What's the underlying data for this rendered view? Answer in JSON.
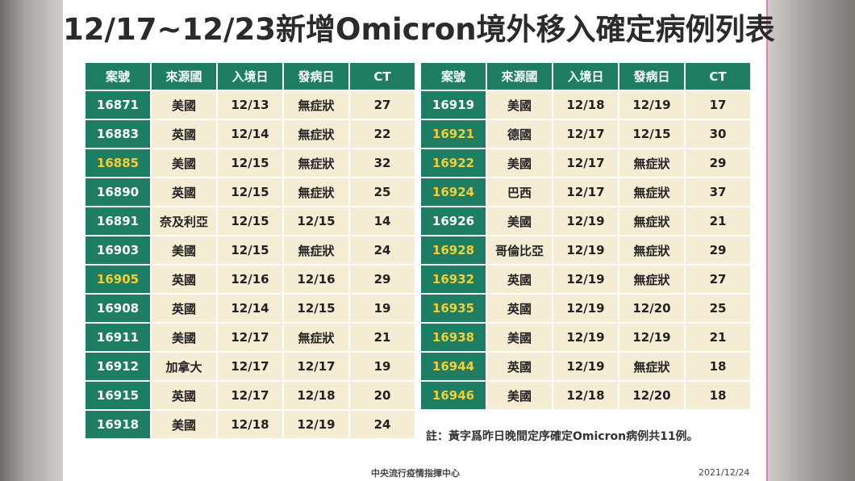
{
  "title": "12/17~12/23新增Omicron境外移入確定病例列表",
  "headers": [
    "案號",
    "來源國",
    "入境日",
    "發病日",
    "CT"
  ],
  "left_rows": [
    {
      "case": "16871",
      "hl": false,
      "country": "美國",
      "entry": "12/13",
      "onset": "無症狀",
      "ct": "27"
    },
    {
      "case": "16883",
      "hl": false,
      "country": "英國",
      "entry": "12/14",
      "onset": "無症狀",
      "ct": "22"
    },
    {
      "case": "16885",
      "hl": true,
      "country": "美國",
      "entry": "12/15",
      "onset": "無症狀",
      "ct": "32"
    },
    {
      "case": "16890",
      "hl": false,
      "country": "英國",
      "entry": "12/15",
      "onset": "無症狀",
      "ct": "25"
    },
    {
      "case": "16891",
      "hl": false,
      "country": "奈及利亞",
      "entry": "12/15",
      "onset": "12/15",
      "ct": "14"
    },
    {
      "case": "16903",
      "hl": false,
      "country": "美國",
      "entry": "12/15",
      "onset": "無症狀",
      "ct": "24"
    },
    {
      "case": "16905",
      "hl": true,
      "country": "英國",
      "entry": "12/16",
      "onset": "12/16",
      "ct": "29"
    },
    {
      "case": "16908",
      "hl": false,
      "country": "英國",
      "entry": "12/14",
      "onset": "12/15",
      "ct": "19"
    },
    {
      "case": "16911",
      "hl": false,
      "country": "美國",
      "entry": "12/17",
      "onset": "無症狀",
      "ct": "21"
    },
    {
      "case": "16912",
      "hl": false,
      "country": "加拿大",
      "entry": "12/17",
      "onset": "12/17",
      "ct": "19"
    },
    {
      "case": "16915",
      "hl": false,
      "country": "英國",
      "entry": "12/17",
      "onset": "12/18",
      "ct": "20"
    },
    {
      "case": "16918",
      "hl": false,
      "country": "美國",
      "entry": "12/18",
      "onset": "12/19",
      "ct": "24"
    }
  ],
  "right_rows": [
    {
      "case": "16919",
      "hl": false,
      "country": "美國",
      "entry": "12/18",
      "onset": "12/19",
      "ct": "17"
    },
    {
      "case": "16921",
      "hl": true,
      "country": "德國",
      "entry": "12/17",
      "onset": "12/15",
      "ct": "30"
    },
    {
      "case": "16922",
      "hl": true,
      "country": "美國",
      "entry": "12/17",
      "onset": "無症狀",
      "ct": "29"
    },
    {
      "case": "16924",
      "hl": true,
      "country": "巴西",
      "entry": "12/17",
      "onset": "無症狀",
      "ct": "37"
    },
    {
      "case": "16926",
      "hl": false,
      "country": "美國",
      "entry": "12/19",
      "onset": "無症狀",
      "ct": "21"
    },
    {
      "case": "16928",
      "hl": true,
      "country": "哥倫比亞",
      "entry": "12/19",
      "onset": "無症狀",
      "ct": "29"
    },
    {
      "case": "16932",
      "hl": true,
      "country": "英國",
      "entry": "12/19",
      "onset": "無症狀",
      "ct": "27"
    },
    {
      "case": "16935",
      "hl": true,
      "country": "英國",
      "entry": "12/19",
      "onset": "12/20",
      "ct": "25"
    },
    {
      "case": "16938",
      "hl": true,
      "country": "美國",
      "entry": "12/19",
      "onset": "12/19",
      "ct": "21"
    },
    {
      "case": "16944",
      "hl": true,
      "country": "英國",
      "entry": "12/19",
      "onset": "無症狀",
      "ct": "18"
    },
    {
      "case": "16946",
      "hl": true,
      "country": "美國",
      "entry": "12/18",
      "onset": "12/20",
      "ct": "18"
    }
  ],
  "note": "註：黃字爲昨日晚間定序確定Omicron病例共11例。",
  "footer": {
    "org": "中央流行疫情指揮中心",
    "date": "2021/12/24"
  },
  "colors": {
    "header_green": "#1e7e64",
    "cell_beige": "#f5ecd4",
    "highlight_yellow": "#f3cf34"
  }
}
